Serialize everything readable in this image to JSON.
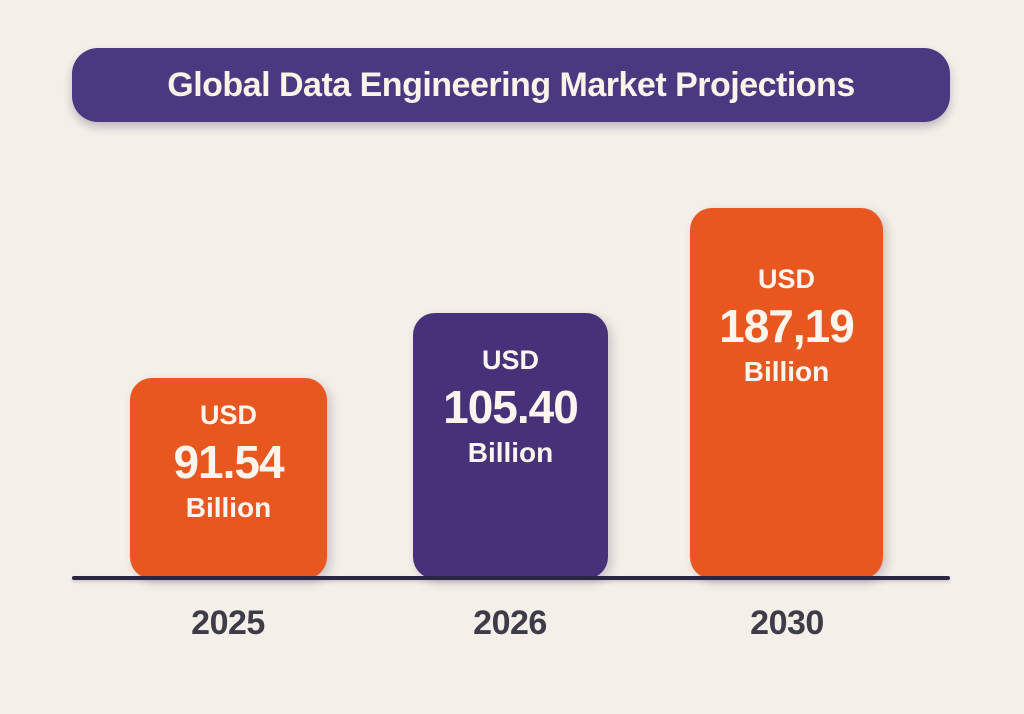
{
  "title": "Global Data Engineering Market Projections",
  "colors": {
    "background": "#F4EFE8",
    "banner": "#4A3880",
    "orange_bar": "#E95721",
    "purple_bar": "#473179",
    "axis_line": "#2B2544",
    "year_label": "#3D3C48",
    "bar_text": "#FCF5ED"
  },
  "chart_data": {
    "type": "bar",
    "title": "Global Data Engineering Market Projections",
    "categories": [
      "2025",
      "2026",
      "2030"
    ],
    "values": [
      91.54,
      105.4,
      187.19
    ],
    "unit": "USD Billion",
    "xlabel": "",
    "ylabel": "",
    "legend": false,
    "grid": false,
    "bars": [
      {
        "year": "2025",
        "currency": "USD",
        "value_label": "91.54",
        "unit_label": "Billion",
        "color": "#E95721"
      },
      {
        "year": "2026",
        "currency": "USD",
        "value_label": "105.40",
        "unit_label": "Billion",
        "color": "#473179"
      },
      {
        "year": "2030",
        "currency": "USD",
        "value_label": "187,19",
        "unit_label": "Billion",
        "color": "#E95721"
      }
    ]
  }
}
